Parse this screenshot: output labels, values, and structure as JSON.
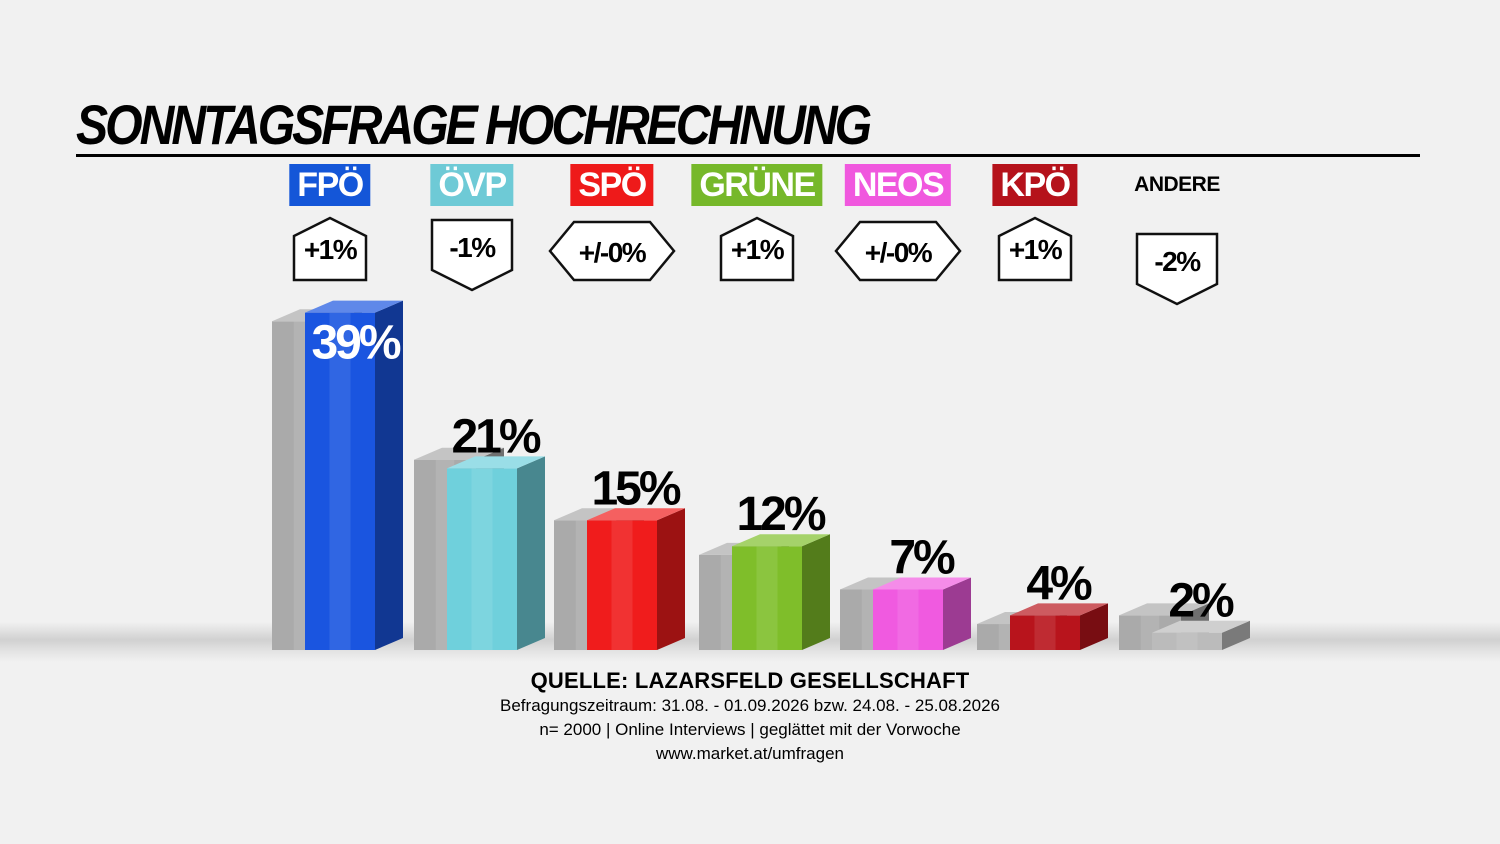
{
  "title": "SONNTAGSFRAGE HOCHRECHNUNG",
  "chart_data": {
    "type": "bar",
    "categories": [
      "FPÖ",
      "ÖVP",
      "SPÖ",
      "GRÜNE",
      "NEOS",
      "KPÖ",
      "ANDERE"
    ],
    "values": [
      39,
      21,
      15,
      12,
      7,
      4,
      2
    ],
    "value_labels": [
      "39%",
      "21%",
      "15%",
      "12%",
      "7%",
      "4%",
      "2%"
    ],
    "previous_values": [
      38,
      22,
      15,
      11,
      7,
      3,
      4
    ],
    "changes": [
      "+1%",
      "-1%",
      "+/-0%",
      "+1%",
      "+/-0%",
      "+1%",
      "-2%"
    ],
    "change_direction": [
      "up",
      "down",
      "same",
      "up",
      "same",
      "up",
      "down"
    ],
    "colors": [
      "#1a55e0",
      "#6fd0dc",
      "#f01c1c",
      "#7fbe2a",
      "#f05ae0",
      "#b8141c",
      "#bbbbbb"
    ],
    "label_colors": [
      "#1456d8",
      "#6ecad6",
      "#ee1a1a",
      "#76b82a",
      "#f058de",
      "#b5121b",
      ""
    ],
    "previous_color": "#aaaaaa",
    "ylim": [
      0,
      40
    ]
  },
  "footer": {
    "source": "QUELLE: LAZARSFELD GESELLSCHAFT",
    "period": "Befragungszeitraum:  31.08. - 01.09.2026  bzw. 24.08. - 25.08.2026",
    "sample": "n= 2000 | Online Interviews | geglättet mit der Vorwoche",
    "url": "www.market.at/umfragen"
  }
}
